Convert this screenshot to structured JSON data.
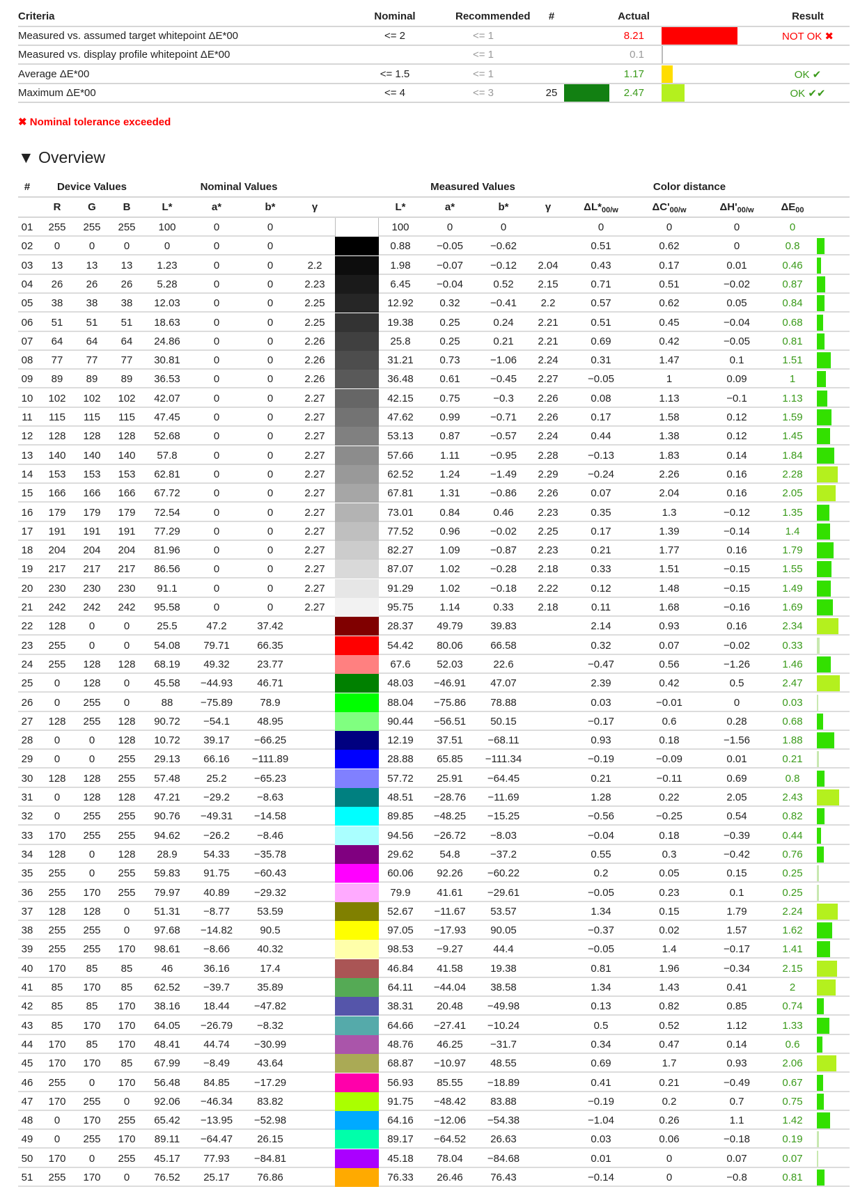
{
  "summary": {
    "headers": {
      "criteria": "Criteria",
      "nominal": "Nominal",
      "recommended": "Recommended",
      "num": "#",
      "actual": "Actual",
      "result": "Result"
    },
    "rows": [
      {
        "criteria": "Measured vs. assumed target whitepoint ΔE*00",
        "nominal": "<= 2",
        "recommended": "<= 1",
        "num": "",
        "actual": "8.21",
        "actual_color": "#ff0000",
        "bar_color": "#ff0000",
        "result": "NOT OK ✖",
        "status": "fail"
      },
      {
        "criteria": "Measured vs. display profile whitepoint ΔE*00",
        "nominal": "",
        "recommended": "<= 1",
        "num": "",
        "actual": "0.1",
        "actual_color": "#999999",
        "bar_color": "#bbbbbb",
        "result": "",
        "status": "none"
      },
      {
        "criteria": "Average ΔE*00",
        "nominal": "<= 1.5",
        "recommended": "<= 1",
        "num": "",
        "actual": "1.17",
        "actual_color": "#3a9a1a",
        "bar_color": "#ffdd00",
        "result": "OK ✔",
        "status": "ok"
      },
      {
        "criteria": "Maximum ΔE*00",
        "nominal": "<= 4",
        "recommended": "<= 3",
        "num": "25",
        "patch_color": "#128012",
        "actual": "2.47",
        "actual_color": "#3a9a1a",
        "bar_color": "#b4f01e",
        "result": "OK ✔✔",
        "status": "ok"
      }
    ],
    "note": "✖ Nominal tolerance exceeded"
  },
  "overview": {
    "title": "Overview",
    "groups": {
      "num": "#",
      "device": "Device Values",
      "nominal": "Nominal Values",
      "measured": "Measured Values",
      "distance": "Color distance"
    },
    "columns": [
      "R",
      "G",
      "B",
      "L*",
      "a*",
      "b*",
      "γ",
      "L*",
      "a*",
      "b*",
      "γ",
      "ΔL*00/w",
      "ΔC'00/w",
      "ΔH'00/w",
      "ΔE00"
    ],
    "rows": [
      [
        "01",
        "255",
        "255",
        "255",
        "100",
        "0",
        "0",
        "",
        "100",
        "0",
        "0",
        "",
        "0",
        "0",
        "0",
        "0"
      ],
      [
        "02",
        "0",
        "0",
        "0",
        "0",
        "0",
        "0",
        "",
        "0.88",
        "−0.05",
        "−0.62",
        "",
        "0.51",
        "0.62",
        "0",
        "0.8"
      ],
      [
        "03",
        "13",
        "13",
        "13",
        "1.23",
        "0",
        "0",
        "2.2",
        "1.98",
        "−0.07",
        "−0.12",
        "2.04",
        "0.43",
        "0.17",
        "0.01",
        "0.46"
      ],
      [
        "04",
        "26",
        "26",
        "26",
        "5.28",
        "0",
        "0",
        "2.23",
        "6.45",
        "−0.04",
        "0.52",
        "2.15",
        "0.71",
        "0.51",
        "−0.02",
        "0.87"
      ],
      [
        "05",
        "38",
        "38",
        "38",
        "12.03",
        "0",
        "0",
        "2.25",
        "12.92",
        "0.32",
        "−0.41",
        "2.2",
        "0.57",
        "0.62",
        "0.05",
        "0.84"
      ],
      [
        "06",
        "51",
        "51",
        "51",
        "18.63",
        "0",
        "0",
        "2.25",
        "19.38",
        "0.25",
        "0.24",
        "2.21",
        "0.51",
        "0.45",
        "−0.04",
        "0.68"
      ],
      [
        "07",
        "64",
        "64",
        "64",
        "24.86",
        "0",
        "0",
        "2.26",
        "25.8",
        "0.25",
        "0.21",
        "2.21",
        "0.69",
        "0.42",
        "−0.05",
        "0.81"
      ],
      [
        "08",
        "77",
        "77",
        "77",
        "30.81",
        "0",
        "0",
        "2.26",
        "31.21",
        "0.73",
        "−1.06",
        "2.24",
        "0.31",
        "1.47",
        "0.1",
        "1.51"
      ],
      [
        "09",
        "89",
        "89",
        "89",
        "36.53",
        "0",
        "0",
        "2.26",
        "36.48",
        "0.61",
        "−0.45",
        "2.27",
        "−0.05",
        "1",
        "0.09",
        "1"
      ],
      [
        "10",
        "102",
        "102",
        "102",
        "42.07",
        "0",
        "0",
        "2.27",
        "42.15",
        "0.75",
        "−0.3",
        "2.26",
        "0.08",
        "1.13",
        "−0.1",
        "1.13"
      ],
      [
        "11",
        "115",
        "115",
        "115",
        "47.45",
        "0",
        "0",
        "2.27",
        "47.62",
        "0.99",
        "−0.71",
        "2.26",
        "0.17",
        "1.58",
        "0.12",
        "1.59"
      ],
      [
        "12",
        "128",
        "128",
        "128",
        "52.68",
        "0",
        "0",
        "2.27",
        "53.13",
        "0.87",
        "−0.57",
        "2.24",
        "0.44",
        "1.38",
        "0.12",
        "1.45"
      ],
      [
        "13",
        "140",
        "140",
        "140",
        "57.8",
        "0",
        "0",
        "2.27",
        "57.66",
        "1.11",
        "−0.95",
        "2.28",
        "−0.13",
        "1.83",
        "0.14",
        "1.84"
      ],
      [
        "14",
        "153",
        "153",
        "153",
        "62.81",
        "0",
        "0",
        "2.27",
        "62.52",
        "1.24",
        "−1.49",
        "2.29",
        "−0.24",
        "2.26",
        "0.16",
        "2.28"
      ],
      [
        "15",
        "166",
        "166",
        "166",
        "67.72",
        "0",
        "0",
        "2.27",
        "67.81",
        "1.31",
        "−0.86",
        "2.26",
        "0.07",
        "2.04",
        "0.16",
        "2.05"
      ],
      [
        "16",
        "179",
        "179",
        "179",
        "72.54",
        "0",
        "0",
        "2.27",
        "73.01",
        "0.84",
        "0.46",
        "2.23",
        "0.35",
        "1.3",
        "−0.12",
        "1.35"
      ],
      [
        "17",
        "191",
        "191",
        "191",
        "77.29",
        "0",
        "0",
        "2.27",
        "77.52",
        "0.96",
        "−0.02",
        "2.25",
        "0.17",
        "1.39",
        "−0.14",
        "1.4"
      ],
      [
        "18",
        "204",
        "204",
        "204",
        "81.96",
        "0",
        "0",
        "2.27",
        "82.27",
        "1.09",
        "−0.87",
        "2.23",
        "0.21",
        "1.77",
        "0.16",
        "1.79"
      ],
      [
        "19",
        "217",
        "217",
        "217",
        "86.56",
        "0",
        "0",
        "2.27",
        "87.07",
        "1.02",
        "−0.28",
        "2.18",
        "0.33",
        "1.51",
        "−0.15",
        "1.55"
      ],
      [
        "20",
        "230",
        "230",
        "230",
        "91.1",
        "0",
        "0",
        "2.27",
        "91.29",
        "1.02",
        "−0.18",
        "2.22",
        "0.12",
        "1.48",
        "−0.15",
        "1.49"
      ],
      [
        "21",
        "242",
        "242",
        "242",
        "95.58",
        "0",
        "0",
        "2.27",
        "95.75",
        "1.14",
        "0.33",
        "2.18",
        "0.11",
        "1.68",
        "−0.16",
        "1.69"
      ],
      [
        "22",
        "128",
        "0",
        "0",
        "25.5",
        "47.2",
        "37.42",
        "",
        "28.37",
        "49.79",
        "39.83",
        "",
        "2.14",
        "0.93",
        "0.16",
        "2.34"
      ],
      [
        "23",
        "255",
        "0",
        "0",
        "54.08",
        "79.71",
        "66.35",
        "",
        "54.42",
        "80.06",
        "66.58",
        "",
        "0.32",
        "0.07",
        "−0.02",
        "0.33"
      ],
      [
        "24",
        "255",
        "128",
        "128",
        "68.19",
        "49.32",
        "23.77",
        "",
        "67.6",
        "52.03",
        "22.6",
        "",
        "−0.47",
        "0.56",
        "−1.26",
        "1.46"
      ],
      [
        "25",
        "0",
        "128",
        "0",
        "45.58",
        "−44.93",
        "46.71",
        "",
        "48.03",
        "−46.91",
        "47.07",
        "",
        "2.39",
        "0.42",
        "0.5",
        "2.47"
      ],
      [
        "26",
        "0",
        "255",
        "0",
        "88",
        "−75.89",
        "78.9",
        "",
        "88.04",
        "−75.86",
        "78.88",
        "",
        "0.03",
        "−0.01",
        "0",
        "0.03"
      ],
      [
        "27",
        "128",
        "255",
        "128",
        "90.72",
        "−54.1",
        "48.95",
        "",
        "90.44",
        "−56.51",
        "50.15",
        "",
        "−0.17",
        "0.6",
        "0.28",
        "0.68"
      ],
      [
        "28",
        "0",
        "0",
        "128",
        "10.72",
        "39.17",
        "−66.25",
        "",
        "12.19",
        "37.51",
        "−68.11",
        "",
        "0.93",
        "0.18",
        "−1.56",
        "1.88"
      ],
      [
        "29",
        "0",
        "0",
        "255",
        "29.13",
        "66.16",
        "−111.89",
        "",
        "28.88",
        "65.85",
        "−111.34",
        "",
        "−0.19",
        "−0.09",
        "0.01",
        "0.21"
      ],
      [
        "30",
        "128",
        "128",
        "255",
        "57.48",
        "25.2",
        "−65.23",
        "",
        "57.72",
        "25.91",
        "−64.45",
        "",
        "0.21",
        "−0.11",
        "0.69",
        "0.8"
      ],
      [
        "31",
        "0",
        "128",
        "128",
        "47.21",
        "−29.2",
        "−8.63",
        "",
        "48.51",
        "−28.76",
        "−11.69",
        "",
        "1.28",
        "0.22",
        "2.05",
        "2.43"
      ],
      [
        "32",
        "0",
        "255",
        "255",
        "90.76",
        "−49.31",
        "−14.58",
        "",
        "89.85",
        "−48.25",
        "−15.25",
        "",
        "−0.56",
        "−0.25",
        "0.54",
        "0.82"
      ],
      [
        "33",
        "170",
        "255",
        "255",
        "94.62",
        "−26.2",
        "−8.46",
        "",
        "94.56",
        "−26.72",
        "−8.03",
        "",
        "−0.04",
        "0.18",
        "−0.39",
        "0.44"
      ],
      [
        "34",
        "128",
        "0",
        "128",
        "28.9",
        "54.33",
        "−35.78",
        "",
        "29.62",
        "54.8",
        "−37.2",
        "",
        "0.55",
        "0.3",
        "−0.42",
        "0.76"
      ],
      [
        "35",
        "255",
        "0",
        "255",
        "59.83",
        "91.75",
        "−60.43",
        "",
        "60.06",
        "92.26",
        "−60.22",
        "",
        "0.2",
        "0.05",
        "0.15",
        "0.25"
      ],
      [
        "36",
        "255",
        "170",
        "255",
        "79.97",
        "40.89",
        "−29.32",
        "",
        "79.9",
        "41.61",
        "−29.61",
        "",
        "−0.05",
        "0.23",
        "0.1",
        "0.25"
      ],
      [
        "37",
        "128",
        "128",
        "0",
        "51.31",
        "−8.77",
        "53.59",
        "",
        "52.67",
        "−11.67",
        "53.57",
        "",
        "1.34",
        "0.15",
        "1.79",
        "2.24"
      ],
      [
        "38",
        "255",
        "255",
        "0",
        "97.68",
        "−14.82",
        "90.5",
        "",
        "97.05",
        "−17.93",
        "90.05",
        "",
        "−0.37",
        "0.02",
        "1.57",
        "1.62"
      ],
      [
        "39",
        "255",
        "255",
        "170",
        "98.61",
        "−8.66",
        "40.32",
        "",
        "98.53",
        "−9.27",
        "44.4",
        "",
        "−0.05",
        "1.4",
        "−0.17",
        "1.41"
      ],
      [
        "40",
        "170",
        "85",
        "85",
        "46",
        "36.16",
        "17.4",
        "",
        "46.84",
        "41.58",
        "19.38",
        "",
        "0.81",
        "1.96",
        "−0.34",
        "2.15"
      ],
      [
        "41",
        "85",
        "170",
        "85",
        "62.52",
        "−39.7",
        "35.89",
        "",
        "64.11",
        "−44.04",
        "38.58",
        "",
        "1.34",
        "1.43",
        "0.41",
        "2"
      ],
      [
        "42",
        "85",
        "85",
        "170",
        "38.16",
        "18.44",
        "−47.82",
        "",
        "38.31",
        "20.48",
        "−49.98",
        "",
        "0.13",
        "0.82",
        "0.85",
        "0.74"
      ],
      [
        "43",
        "85",
        "170",
        "170",
        "64.05",
        "−26.79",
        "−8.32",
        "",
        "64.66",
        "−27.41",
        "−10.24",
        "",
        "0.5",
        "0.52",
        "1.12",
        "1.33"
      ],
      [
        "44",
        "170",
        "85",
        "170",
        "48.41",
        "44.74",
        "−30.99",
        "",
        "48.76",
        "46.25",
        "−31.7",
        "",
        "0.34",
        "0.47",
        "0.14",
        "0.6"
      ],
      [
        "45",
        "170",
        "170",
        "85",
        "67.99",
        "−8.49",
        "43.64",
        "",
        "68.87",
        "−10.97",
        "48.55",
        "",
        "0.69",
        "1.7",
        "0.93",
        "2.06"
      ],
      [
        "46",
        "255",
        "0",
        "170",
        "56.48",
        "84.85",
        "−17.29",
        "",
        "56.93",
        "85.55",
        "−18.89",
        "",
        "0.41",
        "0.21",
        "−0.49",
        "0.67"
      ],
      [
        "47",
        "170",
        "255",
        "0",
        "92.06",
        "−46.34",
        "83.82",
        "",
        "91.75",
        "−48.42",
        "83.88",
        "",
        "−0.19",
        "0.2",
        "0.7",
        "0.75"
      ],
      [
        "48",
        "0",
        "170",
        "255",
        "65.42",
        "−13.95",
        "−52.98",
        "",
        "64.16",
        "−12.06",
        "−54.38",
        "",
        "−1.04",
        "0.26",
        "1.1",
        "1.42"
      ],
      [
        "49",
        "0",
        "255",
        "170",
        "89.11",
        "−64.47",
        "26.15",
        "",
        "89.17",
        "−64.52",
        "26.63",
        "",
        "0.03",
        "0.06",
        "−0.18",
        "0.19"
      ],
      [
        "50",
        "170",
        "0",
        "255",
        "45.17",
        "77.93",
        "−84.81",
        "",
        "45.18",
        "78.04",
        "−84.68",
        "",
        "0.01",
        "0",
        "0.07",
        "0.07"
      ],
      [
        "51",
        "255",
        "170",
        "0",
        "76.52",
        "25.17",
        "76.86",
        "",
        "76.33",
        "26.46",
        "76.43",
        "",
        "−0.14",
        "0",
        "−0.8",
        "0.81"
      ]
    ]
  }
}
